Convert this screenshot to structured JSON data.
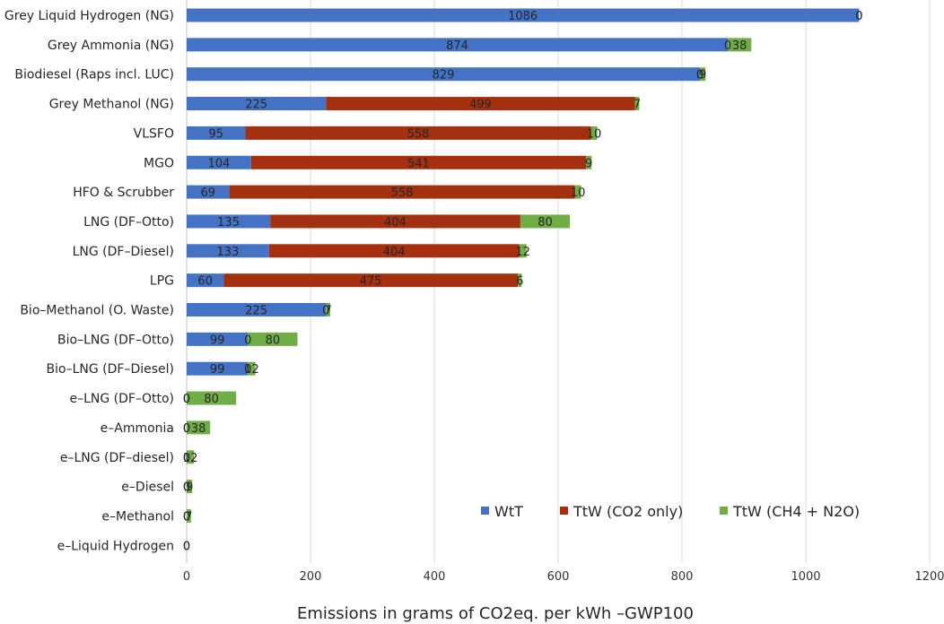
{
  "chart_data": {
    "type": "bar",
    "orientation": "horizontal",
    "stacked": true,
    "title": "",
    "xlabel": "Emissions in grams of CO2eq. per kWh –GWP100",
    "ylabel": "",
    "xlim": [
      0,
      1200
    ],
    "xticks": [
      0,
      200,
      400,
      600,
      800,
      1000,
      1200
    ],
    "grid": true,
    "legend_position": "bottom-right",
    "categories": [
      "Grey Liquid Hydrogen (NG)",
      "Grey Ammonia (NG)",
      "Biodiesel (Raps incl. LUC)",
      "Grey Methanol (NG)",
      "VLSFO",
      "MGO",
      "HFO & Scrubber",
      "LNG (DF–Otto)",
      "LNG (DF–Diesel)",
      "LPG",
      "Bio–Methanol (O. Waste)",
      "Bio–LNG (DF–Otto)",
      "Bio–LNG (DF–Diesel)",
      "e–LNG (DF–Otto)",
      "e–Ammonia",
      "e–LNG (DF–diesel)",
      "e–Diesel",
      "e–Methanol",
      "e–Liquid Hydrogen"
    ],
    "series": [
      {
        "name": "WtT",
        "color": "#4472C4",
        "values": [
          1086,
          874,
          829,
          225,
          95,
          104,
          69,
          135,
          133,
          60,
          225,
          99,
          99,
          0,
          0,
          0,
          0,
          0,
          0
        ]
      },
      {
        "name": "TtW (CO2 only)",
        "color": "#A5300F",
        "values": [
          0,
          0,
          0,
          499,
          558,
          541,
          558,
          404,
          404,
          475,
          0,
          0,
          0,
          0,
          0,
          0,
          0,
          0,
          0
        ]
      },
      {
        "name": "TtW (CH4 + N2O)",
        "color": "#70AD47",
        "values": [
          0,
          38,
          9,
          7,
          10,
          9,
          10,
          80,
          12,
          6,
          7,
          80,
          12,
          80,
          38,
          12,
          9,
          7,
          0
        ]
      }
    ],
    "data_labels": [
      [
        "1086",
        "0",
        "0"
      ],
      [
        "874",
        "0",
        "38"
      ],
      [
        "829",
        "0",
        "9"
      ],
      [
        "225",
        "499",
        "7"
      ],
      [
        "95",
        "558",
        "10"
      ],
      [
        "104",
        "541",
        "9"
      ],
      [
        "69",
        "558",
        "10"
      ],
      [
        "135",
        "404",
        "80"
      ],
      [
        "133",
        "404",
        "12"
      ],
      [
        "60",
        "475",
        "6"
      ],
      [
        "225",
        "0",
        "7"
      ],
      [
        "99",
        "0",
        "80"
      ],
      [
        "99",
        "0",
        "12"
      ],
      [
        "0",
        "0",
        "80"
      ],
      [
        "0",
        "0",
        "38"
      ],
      [
        "0",
        "0",
        "12"
      ],
      [
        "0",
        "0",
        "9"
      ],
      [
        "0",
        "0",
        "7"
      ],
      [
        "0",
        "0",
        ""
      ]
    ]
  }
}
